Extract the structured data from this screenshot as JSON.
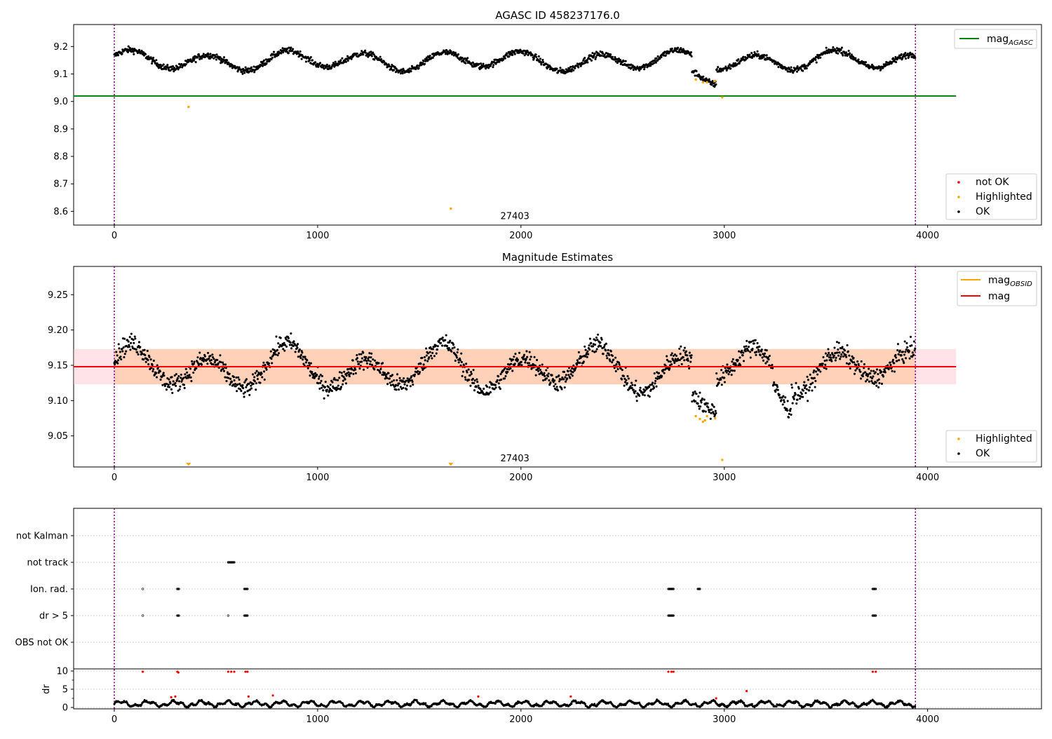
{
  "chart_data": [
    {
      "type": "scatter",
      "panel": "agasc",
      "title": "AGASC ID 458237176.0",
      "xlim": [
        -200,
        4560
      ],
      "ylim": [
        8.55,
        9.28
      ],
      "x_ticks": [
        0,
        1000,
        2000,
        3000,
        4000
      ],
      "y_ticks": [
        8.6,
        8.7,
        8.8,
        8.9,
        9.0,
        9.1,
        9.2
      ],
      "y_tick_labels": [
        "8.6",
        "8.7",
        "8.8",
        "8.9",
        "9.0",
        "9.1",
        "9.2"
      ],
      "obs_lines": [
        0,
        3940
      ],
      "obsid_label": {
        "text": "27403",
        "x": 1970,
        "y": 8.585
      },
      "mag_agasc": {
        "value": 9.02,
        "x_range": [
          -200,
          4140
        ],
        "color": "#008000"
      },
      "legend_lines": [
        {
          "label": "mag",
          "sub": "AGASC",
          "color": "#008000"
        }
      ],
      "legend_points": [
        {
          "label": "not OK",
          "color": "#ff0000"
        },
        {
          "label": "Highlighted",
          "color": "#ffa500"
        },
        {
          "label": "OK",
          "color": "#000000"
        }
      ],
      "series": [
        {
          "name": "OK",
          "color": "#000000",
          "kind": "trace",
          "x_range": [
            0,
            3940
          ],
          "shape": "mag"
        },
        {
          "name": "Highlighted",
          "color": "#ffa500",
          "points": [
            [
              365,
              8.98
            ],
            [
              1655,
              8.61
            ],
            [
              2860,
              9.08
            ],
            [
              2895,
              9.07
            ],
            [
              2915,
              9.07
            ],
            [
              2955,
              9.075
            ],
            [
              2990,
              9.015
            ]
          ]
        }
      ]
    },
    {
      "type": "scatter",
      "panel": "estimates",
      "title": "Magnitude Estimates",
      "xlim": [
        -200,
        4560
      ],
      "ylim": [
        9.006,
        9.29
      ],
      "x_ticks": [
        0,
        1000,
        2000,
        3000,
        4000
      ],
      "y_ticks": [
        9.05,
        9.1,
        9.15,
        9.2,
        9.25
      ],
      "y_tick_labels": [
        "9.05",
        "9.10",
        "9.15",
        "9.20",
        "9.25"
      ],
      "obs_lines": [
        0,
        3940
      ],
      "obsid_label": {
        "text": "27403",
        "x": 1970,
        "y": 9.019
      },
      "mag": {
        "value": 9.148,
        "x_range": [
          -200,
          4140
        ],
        "color": "#ff0000"
      },
      "band_pink": {
        "lo": 9.123,
        "hi": 9.173,
        "x_range": [
          -200,
          4140
        ]
      },
      "band_obsid": {
        "lo": 9.123,
        "hi": 9.173,
        "x_range": [
          0,
          3940
        ]
      },
      "mag_obsid": {
        "value": 9.148,
        "x_range": [
          0,
          3940
        ],
        "color": "#ffa500"
      },
      "legend_lines": [
        {
          "label": "mag",
          "sub": "OBSID",
          "color": "#ffa500"
        },
        {
          "label": "mag",
          "sub": "",
          "color": "#ff0000"
        }
      ],
      "legend_points": [
        {
          "label": "Highlighted",
          "color": "#ffa500"
        },
        {
          "label": "OK",
          "color": "#000000"
        }
      ],
      "series": [
        {
          "name": "OK",
          "color": "#000000",
          "kind": "trace",
          "x_range": [
            0,
            3940
          ],
          "shape": "est"
        },
        {
          "name": "Highlighted",
          "color": "#ffa500",
          "points": [
            [
              2860,
              9.078
            ],
            [
              2880,
              9.074
            ],
            [
              2895,
              9.07
            ],
            [
              2905,
              9.072
            ],
            [
              2915,
              9.078
            ],
            [
              2955,
              9.075
            ],
            [
              2990,
              9.016
            ]
          ]
        },
        {
          "name": "Highlighted (clipped)",
          "color": "#ffa500",
          "markers": [
            365,
            1655
          ]
        }
      ]
    },
    {
      "type": "scatter",
      "panel": "flags",
      "xlim": [
        -200,
        4560
      ],
      "categories": [
        "not Kalman",
        "not track",
        "Ion. rad.",
        "dr > 5",
        "OBS not OK"
      ],
      "obs_lines": [
        0,
        3940
      ],
      "flags": [
        {
          "row": "not track",
          "segments": [
            [
              560,
              590
            ]
          ]
        },
        {
          "row": "Ion. rad.",
          "segments": [
            [
              140,
              140
            ],
            [
              310,
              318
            ],
            [
              640,
              655
            ],
            [
              2725,
              2750
            ],
            [
              2870,
              2880
            ],
            [
              3730,
              3745
            ]
          ]
        },
        {
          "row": "dr > 5",
          "segments": [
            [
              140,
              140
            ],
            [
              310,
              318
            ],
            [
              560,
              560
            ],
            [
              640,
              655
            ],
            [
              2725,
              2750
            ],
            [
              3730,
              3745
            ]
          ]
        }
      ]
    },
    {
      "type": "scatter",
      "panel": "dr",
      "ylabel": "dr",
      "xlim": [
        -200,
        4560
      ],
      "ylim": [
        -0.5,
        10.5
      ],
      "y_ticks": [
        0,
        5,
        10
      ],
      "y_tick_labels": [
        "0",
        "5",
        "10"
      ],
      "x_ticks": [
        0,
        1000,
        2000,
        3000,
        4000
      ],
      "x_tick_labels": [
        "0",
        "1000",
        "2000",
        "3000",
        "4000"
      ],
      "obs_lines": [
        0,
        3940
      ],
      "series": [
        {
          "name": "dr OK",
          "color": "#000000",
          "kind": "trace",
          "x_range": [
            0,
            3940
          ],
          "shape": "dr"
        },
        {
          "name": "dr not OK",
          "color": "#ff0000",
          "points": [
            [
              140,
              9.8
            ],
            [
              310,
              9.8
            ],
            [
              315,
              9.6
            ],
            [
              560,
              9.8
            ],
            [
              575,
              9.8
            ],
            [
              590,
              9.8
            ],
            [
              645,
              9.8
            ],
            [
              655,
              9.8
            ],
            [
              2725,
              9.8
            ],
            [
              2740,
              9.8
            ],
            [
              2750,
              9.8
            ],
            [
              3730,
              9.8
            ],
            [
              3745,
              9.8
            ],
            [
              280,
              2.8
            ],
            [
              300,
              3.0
            ],
            [
              660,
              3.0
            ],
            [
              780,
              3.3
            ],
            [
              1790,
              3.0
            ],
            [
              2245,
              3.0
            ],
            [
              2960,
              2.5
            ],
            [
              3110,
              4.5
            ]
          ]
        }
      ]
    }
  ]
}
